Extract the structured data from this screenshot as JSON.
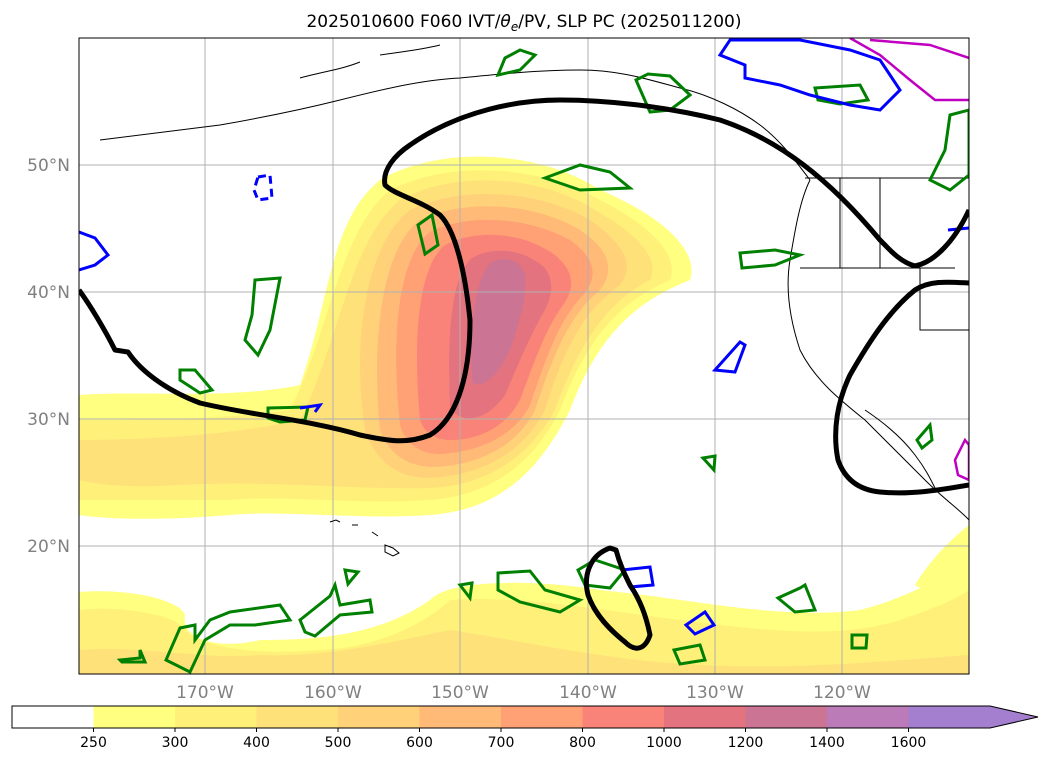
{
  "title_prefix": "2025010600 F060 IVT/",
  "title_theta": "θ",
  "title_sub": "e",
  "title_suffix": "/PV, SLP PC (2025011200)",
  "lat_labels": [
    "50°N",
    "40°N",
    "30°N",
    "20°N"
  ],
  "lon_labels": [
    "170°W",
    "160°W",
    "150°W",
    "140°W",
    "130°W",
    "120°W"
  ],
  "colorbar": {
    "levels": [
      "250",
      "300",
      "400",
      "500",
      "600",
      "700",
      "800",
      "1000",
      "1200",
      "1400",
      "1600"
    ],
    "colors": [
      "#ffffff",
      "#ffff80",
      "#fff07a",
      "#ffe17a",
      "#ffd27a",
      "#ffba78",
      "#ffa075",
      "#f98378",
      "#e3737e",
      "#cc7493",
      "#bb7ab8",
      "#a47fd0"
    ]
  },
  "contour_colors": {
    "slp": "#000000",
    "pv_green": "#008000",
    "pv_blue": "#0000ff",
    "pv_magenta": "#c000c0"
  }
}
